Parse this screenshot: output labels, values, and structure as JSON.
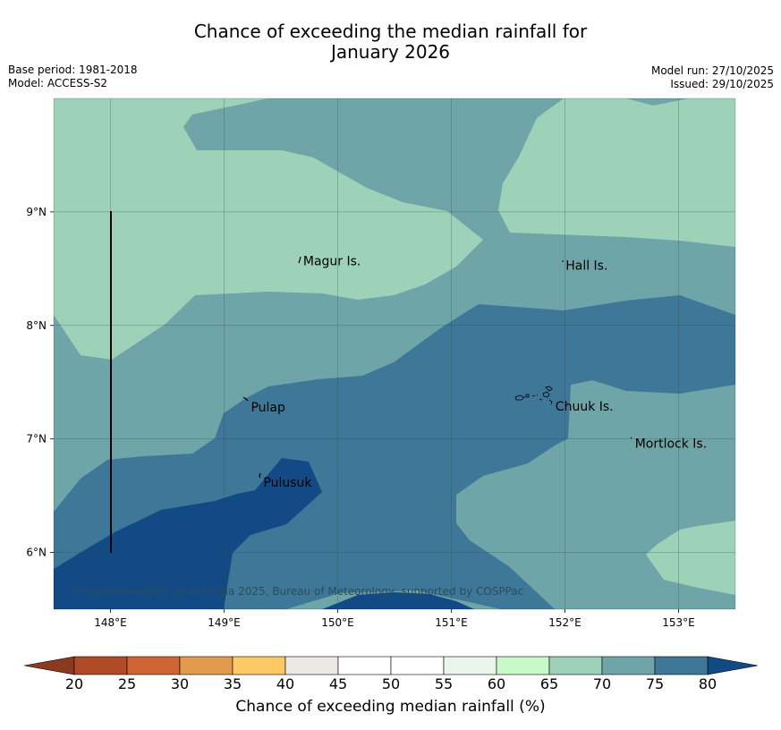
{
  "title": {
    "line1": "Chance of exceeding the median rainfall for",
    "line2": "January 2026"
  },
  "meta": {
    "base_period": "Base period: 1981-2018",
    "model": "Model: ACCESS-S2",
    "model_run": "Model run: 27/10/2025",
    "issued": "Issued: 29/10/2025"
  },
  "map": {
    "lon_range": [
      147.5,
      153.5
    ],
    "lat_range": [
      5.5,
      10.0
    ],
    "x_ticks": [
      "148°E",
      "149°E",
      "150°E",
      "151°E",
      "152°E",
      "153°E"
    ],
    "y_ticks": [
      "6°N",
      "7°N",
      "8°N",
      "9°N"
    ],
    "grid": true,
    "places": [
      {
        "name": "Magur Is.",
        "lon": 149.68,
        "lat": 8.57
      },
      {
        "name": "Hall Is.",
        "lon": 151.99,
        "lat": 8.53
      },
      {
        "name": "Pulap",
        "lon": 149.22,
        "lat": 7.28
      },
      {
        "name": "Chuuk Is.",
        "lon": 151.9,
        "lat": 7.29
      },
      {
        "name": "Mortlock Is.",
        "lon": 152.6,
        "lat": 6.96
      },
      {
        "name": "Pulusuk",
        "lon": 149.33,
        "lat": 6.62
      }
    ],
    "copyright": "© Commonwealth of Australia 2025, Bureau of Meteorology, supported by COSPPac"
  },
  "colorbar": {
    "ticks": [
      "20",
      "25",
      "30",
      "35",
      "40",
      "45",
      "50",
      "55",
      "60",
      "65",
      "70",
      "75",
      "80"
    ],
    "colors": [
      "#b14a26",
      "#cf6534",
      "#e29a4c",
      "#fdc965",
      "#ece8e4",
      "#ffffff",
      "#ffffff",
      "#eaf5ea",
      "#c8fac8",
      "#9dd1b8",
      "#6fa5a8",
      "#3e7797"
    ],
    "under_color": "#8a3a1e",
    "over_color": "#124a86",
    "label": "Chance of exceeding median rainfall (%)"
  }
}
